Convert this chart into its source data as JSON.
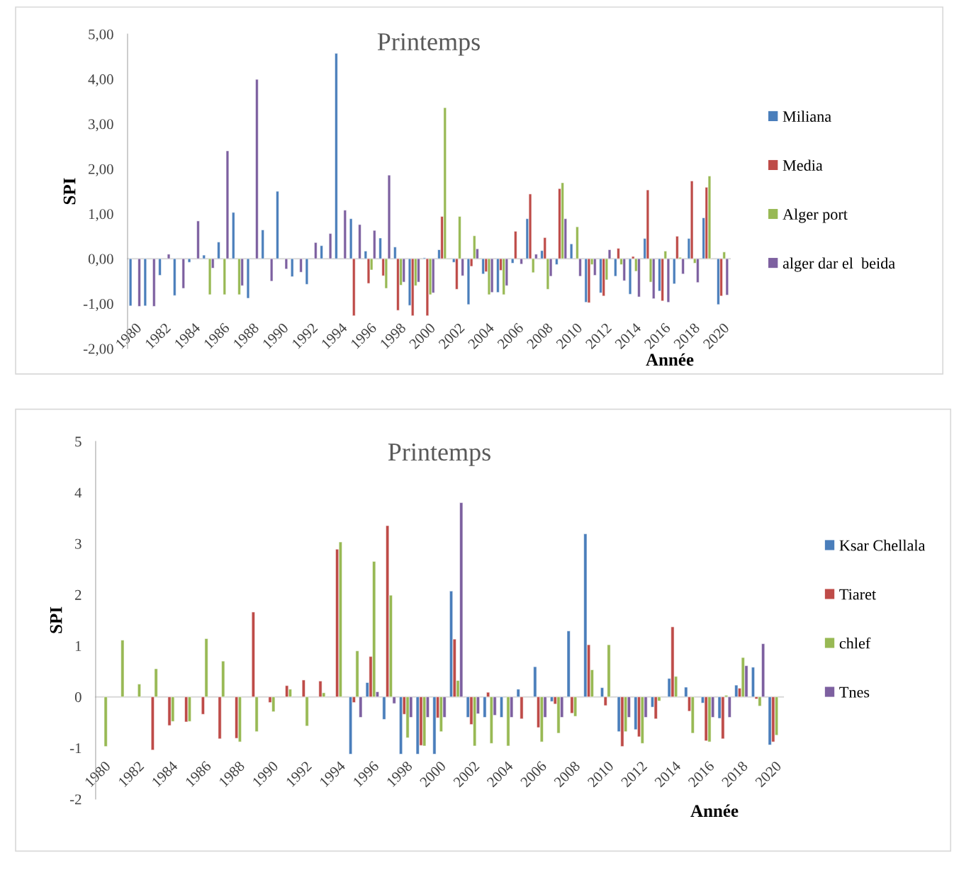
{
  "chart_data": [
    {
      "type": "bar",
      "title": "Printemps",
      "xlabel": "Année",
      "ylabel": "SPI",
      "legend": "right",
      "categories": [
        "1980",
        null,
        "1982",
        null,
        "1984",
        null,
        "1986",
        null,
        "1988",
        null,
        "1990",
        null,
        "1992",
        null,
        "1994",
        null,
        "1996",
        null,
        "1998",
        null,
        "2000",
        null,
        "2002",
        null,
        "2004",
        null,
        "2006",
        null,
        "2008",
        null,
        "2010",
        null,
        "2012",
        null,
        "2014",
        null,
        "2016",
        null,
        "2018",
        null,
        "2020"
      ],
      "ylim": [
        -2,
        5
      ],
      "yticks": [
        {
          "value": -2,
          "label": "-2,00"
        },
        {
          "value": -1,
          "label": "-1,00"
        },
        {
          "value": 0,
          "label": "0,00"
        },
        {
          "value": 1,
          "label": "1,00"
        },
        {
          "value": 2,
          "label": "2,00"
        },
        {
          "value": 3,
          "label": "3,00"
        },
        {
          "value": 4,
          "label": "4,00"
        },
        {
          "value": 5,
          "label": "5,00"
        }
      ],
      "series": [
        {
          "name": "Miliana",
          "color": "#4a7ebb",
          "values": [
            -1.05,
            -1.05,
            -0.37,
            -0.82,
            -0.08,
            0.08,
            0.37,
            1.03,
            -0.88,
            0.64,
            1.5,
            -0.4,
            -0.57,
            0.29,
            4.57,
            0.89,
            0.17,
            0.46,
            0.26,
            -1.04,
            0.02,
            0.2,
            -0.08,
            -1.02,
            -0.34,
            -0.75,
            -0.1,
            0.89,
            0.18,
            -0.13,
            0.33,
            -0.97,
            -0.76,
            -0.39,
            -0.79,
            0.45,
            -0.72,
            -0.56,
            0.45,
            0.91,
            -1.02
          ]
        },
        {
          "name": "Media",
          "color": "#be4b48",
          "values": [
            null,
            null,
            null,
            null,
            null,
            null,
            null,
            null,
            null,
            null,
            null,
            null,
            null,
            null,
            null,
            -1.27,
            -0.55,
            -0.38,
            -1.15,
            -1.27,
            -1.27,
            0.94,
            -0.68,
            -0.17,
            -0.29,
            -0.26,
            0.61,
            1.44,
            0.47,
            1.56,
            null,
            -0.98,
            -0.83,
            0.23,
            0.05,
            1.53,
            -0.94,
            0.5,
            1.73,
            1.59,
            -0.83
          ]
        },
        {
          "name": "Alger port",
          "color": "#98b954",
          "values": [
            null,
            null,
            null,
            null,
            null,
            -0.8,
            -0.8,
            -0.8,
            null,
            null,
            null,
            null,
            null,
            null,
            null,
            null,
            -0.25,
            -0.66,
            -0.59,
            -0.6,
            -0.8,
            3.36,
            0.94,
            0.51,
            -0.8,
            -0.8,
            null,
            -0.31,
            -0.68,
            1.69,
            0.71,
            -0.13,
            -0.47,
            -0.13,
            -0.28,
            -0.52,
            0.17,
            0.03,
            -0.1,
            1.84,
            0.15
          ]
        },
        {
          "name": "alger dar el  beida",
          "color": "#7d60a0",
          "values": [
            -1.06,
            -1.06,
            0.1,
            -0.66,
            0.84,
            -0.21,
            2.4,
            -0.6,
            3.99,
            -0.5,
            -0.23,
            -0.3,
            0.36,
            0.56,
            1.08,
            0.76,
            0.63,
            1.86,
            -0.52,
            -0.52,
            -0.76,
            null,
            -0.38,
            0.22,
            -0.75,
            -0.6,
            -0.12,
            0.1,
            -0.39,
            0.89,
            -0.39,
            -0.37,
            0.2,
            -0.49,
            -0.85,
            -0.89,
            -0.97,
            -0.34,
            -0.53,
            null,
            -0.81
          ]
        }
      ]
    },
    {
      "type": "bar",
      "title": "Printemps",
      "xlabel": "Année",
      "ylabel": "SPI",
      "legend": "right",
      "categories": [
        "1980",
        null,
        "1982",
        null,
        "1984",
        null,
        "1986",
        null,
        "1988",
        null,
        "1990",
        null,
        "1992",
        null,
        "1994",
        null,
        "1996",
        null,
        "1998",
        null,
        "2000",
        null,
        "2002",
        null,
        "2004",
        null,
        "2006",
        null,
        "2008",
        null,
        "2010",
        null,
        "2012",
        null,
        "2014",
        null,
        "2016",
        null,
        "2018",
        null,
        "2020"
      ],
      "ylim": [
        -2,
        5
      ],
      "yticks": [
        -2,
        -1,
        0,
        1,
        2,
        3,
        4,
        5
      ],
      "series": [
        {
          "name": "Ksar Chellala",
          "color": "#4a7ebb",
          "values": [
            null,
            null,
            null,
            null,
            null,
            null,
            null,
            null,
            null,
            null,
            null,
            null,
            null,
            null,
            null,
            -1.12,
            0.28,
            -0.44,
            -1.12,
            -1.12,
            -1.12,
            2.07,
            -0.4,
            -0.4,
            -0.4,
            0.15,
            0.59,
            -0.09,
            1.29,
            3.19,
            0.18,
            -0.68,
            -0.64,
            -0.2,
            0.36,
            0.19,
            -0.12,
            -0.42,
            0.23,
            0.58,
            -0.94
          ]
        },
        {
          "name": "Tiaret",
          "color": "#be4b48",
          "values": [
            null,
            null,
            null,
            -1.04,
            -0.56,
            -0.49,
            -0.34,
            -0.82,
            -0.81,
            1.66,
            -0.11,
            0.22,
            0.33,
            0.31,
            2.89,
            -0.11,
            0.79,
            3.35,
            -0.34,
            -0.95,
            -0.41,
            1.13,
            -0.54,
            0.09,
            null,
            -0.43,
            -0.6,
            -0.14,
            -0.32,
            1.02,
            -0.17,
            -0.97,
            -0.78,
            -0.43,
            1.37,
            -0.28,
            -0.86,
            -0.82,
            0.17,
            -0.04,
            -0.88
          ]
        },
        {
          "name": "chlef",
          "color": "#98b954",
          "values": [
            -0.97,
            1.11,
            0.25,
            0.55,
            -0.48,
            -0.48,
            1.14,
            0.7,
            -0.88,
            -0.68,
            -0.29,
            0.15,
            -0.57,
            0.08,
            3.03,
            0.9,
            2.65,
            1.99,
            -0.8,
            -0.96,
            -0.68,
            0.32,
            -0.96,
            -0.91,
            -0.96,
            null,
            -0.88,
            -0.71,
            -0.38,
            0.53,
            1.02,
            -0.68,
            -0.91,
            -0.08,
            0.4,
            -0.71,
            -0.88,
            0.03,
            0.77,
            -0.18,
            -0.75
          ]
        },
        {
          "name": "Tnes",
          "color": "#7d60a0",
          "values": [
            null,
            null,
            null,
            null,
            null,
            null,
            null,
            null,
            null,
            null,
            null,
            null,
            null,
            null,
            null,
            -0.4,
            0.1,
            -0.13,
            -0.4,
            -0.4,
            -0.4,
            3.8,
            -0.33,
            -0.36,
            -0.4,
            null,
            -0.4,
            -0.4,
            null,
            null,
            null,
            -0.4,
            -0.4,
            null,
            null,
            null,
            -0.4,
            -0.4,
            0.61,
            1.04,
            null
          ]
        }
      ]
    }
  ]
}
